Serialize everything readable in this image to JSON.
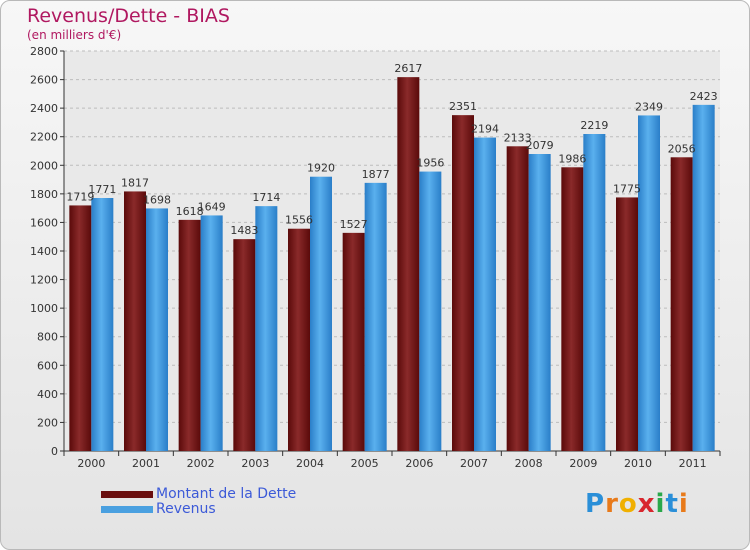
{
  "title": "Revenus/Dette - BIAS",
  "subtitle": "(en milliers d'€)",
  "brand": {
    "letters": [
      {
        "ch": "P",
        "color": "#2a8fd8"
      },
      {
        "ch": "r",
        "color": "#e87a1a"
      },
      {
        "ch": "o",
        "color": "#f0b000"
      },
      {
        "ch": "x",
        "color": "#d8262e"
      },
      {
        "ch": "i",
        "color": "#2aa84a"
      },
      {
        "ch": "t",
        "color": "#2a8fd8"
      },
      {
        "ch": "i",
        "color": "#e87a1a"
      }
    ]
  },
  "chart_data": {
    "type": "bar",
    "title": "Revenus/Dette - BIAS",
    "subtitle": "(en milliers d'€)",
    "categories": [
      "2000",
      "2001",
      "2002",
      "2003",
      "2004",
      "2005",
      "2006",
      "2007",
      "2008",
      "2009",
      "2010",
      "2011"
    ],
    "series": [
      {
        "name": "Montant de la Dette",
        "color": "#7a1a1a",
        "values": [
          1719,
          1817,
          1618,
          1483,
          1556,
          1527,
          2617,
          2351,
          2133,
          1986,
          1775,
          2056
        ]
      },
      {
        "name": "Revenus",
        "color": "#4aa0e0",
        "values": [
          1771,
          1698,
          1649,
          1714,
          1920,
          1877,
          1956,
          2194,
          2079,
          2219,
          2349,
          2423
        ]
      }
    ],
    "ylim": [
      0,
      2800
    ],
    "yticks": [
      0,
      200,
      400,
      600,
      800,
      1000,
      1200,
      1400,
      1600,
      1800,
      2000,
      2200,
      2400,
      2600,
      2800
    ],
    "grid": true,
    "legend_position": "bottom-left"
  }
}
